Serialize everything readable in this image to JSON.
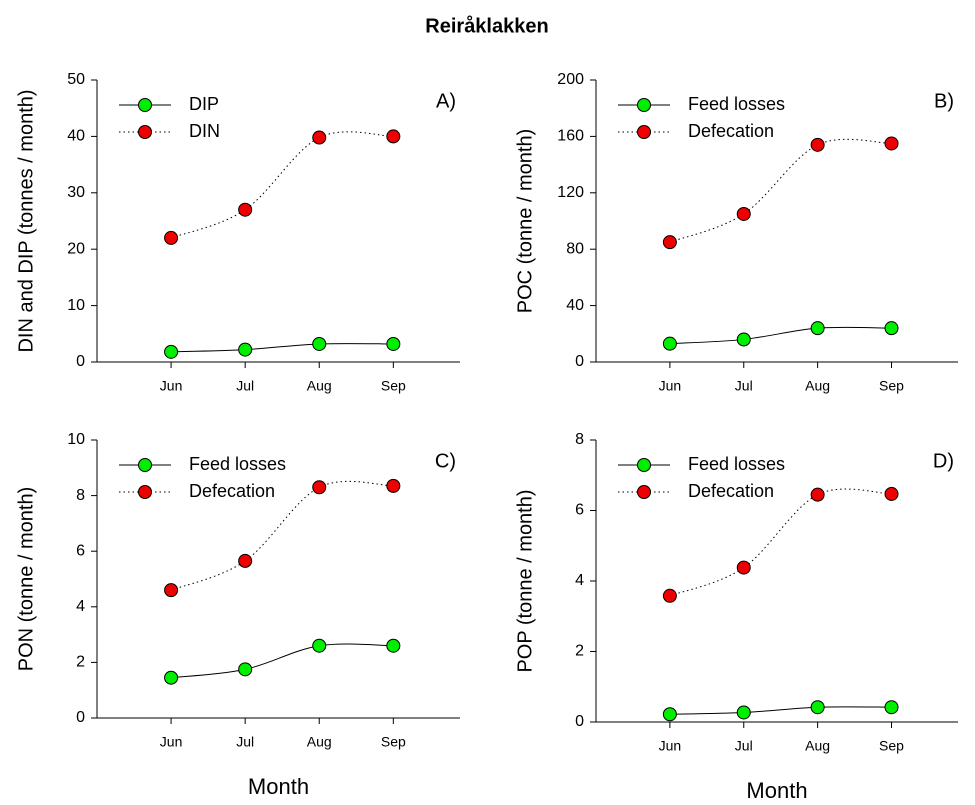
{
  "title": "Reiråklakken",
  "chart_data": [
    {
      "type": "line",
      "panel_label": "A)",
      "ylabel": "DIN and DIP (tonnes / month)",
      "categories": [
        "Jun",
        "Jul",
        "Aug",
        "Sep"
      ],
      "ylim": [
        0,
        50
      ],
      "yticks": [
        0,
        10,
        20,
        30,
        40,
        50
      ],
      "legend": "upper left",
      "series": [
        {
          "name": "DIP",
          "color": "#00ee00",
          "line": "solid",
          "values": [
            1.8,
            2.2,
            3.2,
            3.2
          ]
        },
        {
          "name": "DIN",
          "color": "#ee0000",
          "line": "dotted",
          "values": [
            22,
            27,
            39.8,
            40
          ]
        }
      ]
    },
    {
      "type": "line",
      "panel_label": "B)",
      "ylabel": "POC (tonne / month)",
      "categories": [
        "Jun",
        "Jul",
        "Aug",
        "Sep"
      ],
      "ylim": [
        0,
        200
      ],
      "yticks": [
        0,
        40,
        80,
        120,
        160,
        200
      ],
      "legend": "upper left",
      "series": [
        {
          "name": "Feed losses",
          "color": "#00ee00",
          "line": "solid",
          "values": [
            13,
            16,
            24,
            24
          ]
        },
        {
          "name": "Defecation",
          "color": "#ee0000",
          "line": "dotted",
          "values": [
            85,
            105,
            154,
            155
          ]
        }
      ]
    },
    {
      "type": "line",
      "panel_label": "C)",
      "ylabel": "PON (tonne / month)",
      "xlabel": "Month",
      "categories": [
        "Jun",
        "Jul",
        "Aug",
        "Sep"
      ],
      "ylim": [
        0,
        10
      ],
      "yticks": [
        0,
        2,
        4,
        6,
        8,
        10
      ],
      "legend": "upper left",
      "series": [
        {
          "name": "Feed losses",
          "color": "#00ee00",
          "line": "solid",
          "values": [
            1.45,
            1.75,
            2.6,
            2.6
          ]
        },
        {
          "name": "Defecation",
          "color": "#ee0000",
          "line": "dotted",
          "values": [
            4.6,
            5.65,
            8.3,
            8.35
          ]
        }
      ]
    },
    {
      "type": "line",
      "panel_label": "D)",
      "ylabel": "POP (tonne / month)",
      "xlabel": "Month",
      "categories": [
        "Jun",
        "Jul",
        "Aug",
        "Sep"
      ],
      "ylim": [
        0,
        8
      ],
      "yticks": [
        0,
        2,
        4,
        6,
        8
      ],
      "legend": "upper left",
      "series": [
        {
          "name": "Feed losses",
          "color": "#00ee00",
          "line": "solid",
          "values": [
            0.22,
            0.27,
            0.42,
            0.42
          ]
        },
        {
          "name": "Defecation",
          "color": "#ee0000",
          "line": "dotted",
          "values": [
            3.58,
            4.38,
            6.45,
            6.47
          ]
        }
      ]
    }
  ]
}
